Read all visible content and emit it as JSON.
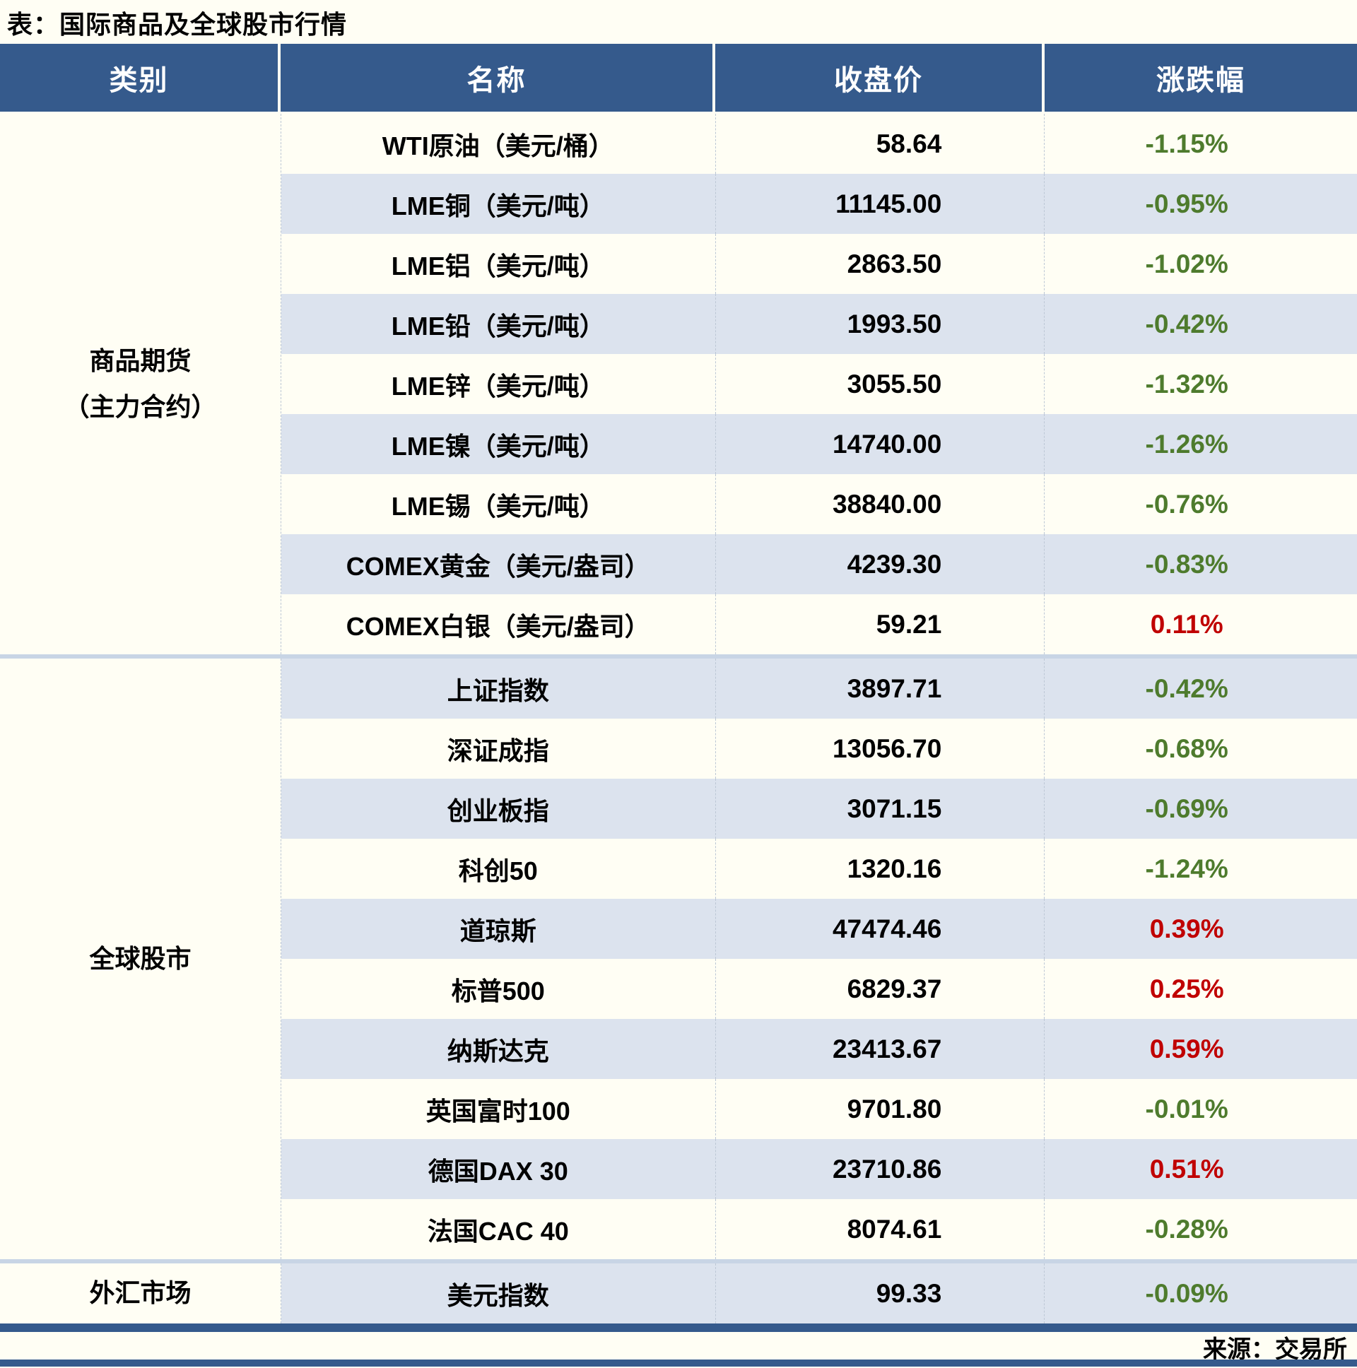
{
  "title": "表：国际商品及全球股市行情",
  "source": "来源：交易所",
  "colors": {
    "header_bg": "#355A8C",
    "header_text": "#FFFFFF",
    "alt_row_bg": "#DCE3EE",
    "page_bg": "#FFFEF4",
    "group_divider": "#C8D5E5",
    "bottom_rule": "#355A8C",
    "up": "#C00000",
    "down": "#4E7B2D",
    "text": "#000000"
  },
  "chart_data": {
    "type": "table",
    "title": "表：国际商品及全球股市行情",
    "columns": [
      "类别",
      "名称",
      "收盘价",
      "涨跌幅"
    ],
    "groups": [
      {
        "lines": [
          "商品期货",
          "（主力合约）"
        ],
        "row_span": [
          0,
          8
        ]
      },
      {
        "lines": [
          "全球股市"
        ],
        "row_span": [
          9,
          18
        ]
      },
      {
        "lines": [
          "外汇市场"
        ],
        "row_span": [
          19,
          19
        ]
      }
    ],
    "rows": [
      {
        "category": "商品期货（主力合约）",
        "name": "WTI原油（美元/桶）",
        "close": "58.64",
        "change": "-1.15%"
      },
      {
        "category": "商品期货（主力合约）",
        "name": "LME铜（美元/吨）",
        "close": "11145.00",
        "change": "-0.95%"
      },
      {
        "category": "商品期货（主力合约）",
        "name": "LME铝（美元/吨）",
        "close": "2863.50",
        "change": "-1.02%"
      },
      {
        "category": "商品期货（主力合约）",
        "name": "LME铅（美元/吨）",
        "close": "1993.50",
        "change": "-0.42%"
      },
      {
        "category": "商品期货（主力合约）",
        "name": "LME锌（美元/吨）",
        "close": "3055.50",
        "change": "-1.32%"
      },
      {
        "category": "商品期货（主力合约）",
        "name": "LME镍（美元/吨）",
        "close": "14740.00",
        "change": "-1.26%"
      },
      {
        "category": "商品期货（主力合约）",
        "name": "LME锡（美元/吨）",
        "close": "38840.00",
        "change": "-0.76%"
      },
      {
        "category": "商品期货（主力合约）",
        "name": "COMEX黄金（美元/盎司）",
        "close": "4239.30",
        "change": "-0.83%"
      },
      {
        "category": "商品期货（主力合约）",
        "name": "COMEX白银（美元/盎司）",
        "close": "59.21",
        "change": "0.11%"
      },
      {
        "category": "全球股市",
        "name": "上证指数",
        "close": "3897.71",
        "change": "-0.42%"
      },
      {
        "category": "全球股市",
        "name": "深证成指",
        "close": "13056.70",
        "change": "-0.68%"
      },
      {
        "category": "全球股市",
        "name": "创业板指",
        "close": "3071.15",
        "change": "-0.69%"
      },
      {
        "category": "全球股市",
        "name": "科创50",
        "close": "1320.16",
        "change": "-1.24%"
      },
      {
        "category": "全球股市",
        "name": "道琼斯",
        "close": "47474.46",
        "change": "0.39%"
      },
      {
        "category": "全球股市",
        "name": "标普500",
        "close": "6829.37",
        "change": "0.25%"
      },
      {
        "category": "全球股市",
        "name": "纳斯达克",
        "close": "23413.67",
        "change": "0.59%"
      },
      {
        "category": "全球股市",
        "name": "英国富时100",
        "close": "9701.80",
        "change": "-0.01%"
      },
      {
        "category": "全球股市",
        "name": "德国DAX 30",
        "close": "23710.86",
        "change": "0.51%"
      },
      {
        "category": "全球股市",
        "name": "法国CAC 40",
        "close": "8074.61",
        "change": "-0.28%"
      },
      {
        "category": "外汇市场",
        "name": "美元指数",
        "close": "99.33",
        "change": "-0.09%"
      }
    ]
  }
}
